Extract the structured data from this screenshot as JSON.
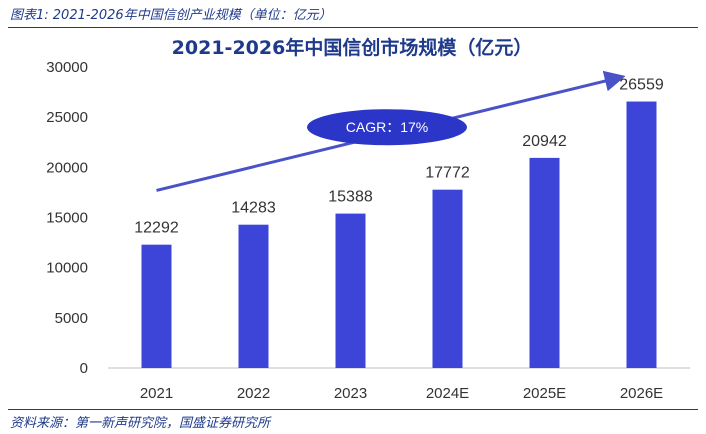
{
  "header": {
    "caption": "图表1: 2021-2026年中国信创产业规模（单位：亿元）"
  },
  "footer": {
    "source": "资料来源：第一新声研究院，国盛证券研究所"
  },
  "chart_data": {
    "type": "bar",
    "title": "2021-2026年中国信创市场规模（亿元）",
    "categories": [
      "2021",
      "2022",
      "2023",
      "2024E",
      "2025E",
      "2026E"
    ],
    "values": [
      12292,
      14283,
      15388,
      17772,
      20942,
      26559
    ],
    "ylim": [
      0,
      30000
    ],
    "yticks": [
      0,
      5000,
      10000,
      15000,
      20000,
      25000,
      30000
    ],
    "xlabel": "",
    "ylabel": "",
    "grid": false,
    "annotation": "CAGR：17%",
    "bar_color": "#3c45d8",
    "title_color": "#1f3a8a",
    "ellipse_color": "#2b35c8",
    "arrow_color": "#4a52c8"
  }
}
